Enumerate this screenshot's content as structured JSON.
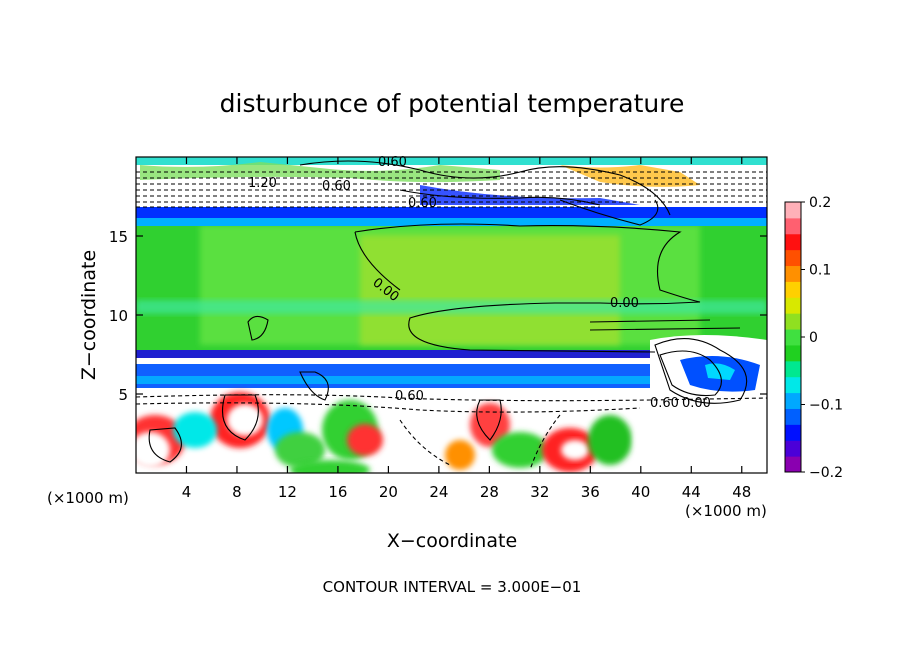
{
  "chart_data": {
    "type": "heatmap",
    "title": "disturbunce of potential temperature",
    "xlabel": "X−coordinate",
    "ylabel": "Z−coordinate",
    "x_unit_left": "(×1000 m)",
    "x_unit_right": "(×1000 m)",
    "xlim": [
      0,
      50
    ],
    "ylim": [
      0,
      20
    ],
    "x_ticks": [
      4,
      8,
      12,
      16,
      20,
      24,
      28,
      32,
      36,
      40,
      44,
      48
    ],
    "y_ticks": [
      5,
      10,
      15
    ],
    "x_tick_labels": [
      "4",
      "8",
      "12",
      "16",
      "20",
      "24",
      "28",
      "32",
      "36",
      "40",
      "44",
      "48"
    ],
    "y_tick_labels": [
      "5",
      "10",
      "15"
    ],
    "colorbar": {
      "range": [
        -0.2,
        0.2
      ],
      "ticks": [
        0.2,
        0.1,
        0,
        -0.1,
        -0.2
      ],
      "tick_labels": [
        "0.2",
        "0.1",
        "0",
        "−0.1",
        "−0.2"
      ],
      "colors": [
        "#8a00b0",
        "#4b00d8",
        "#0010ff",
        "#0060ff",
        "#00a8ff",
        "#00e8e8",
        "#00e890",
        "#20d020",
        "#40e040",
        "#90e020",
        "#d8e800",
        "#ffd000",
        "#ff9000",
        "#ff5000",
        "#ff1010",
        "#ff6070",
        "#ffb0b8"
      ]
    },
    "contour_interval_text": "CONTOUR INTERVAL = 3.000E−01",
    "contour_labels": [
      "0.60",
      "0.60",
      "0.60",
      "0.00",
      "0.00",
      "0.60",
      "1.20",
      "0.60",
      "0.00"
    ],
    "layers": [
      {
        "z_range": [
          17.5,
          20
        ],
        "value": "-0.2 to 0.2 (mixed)"
      },
      {
        "z_range": [
          16.0,
          17.0
        ],
        "value": -0.18
      },
      {
        "z_range": [
          8.0,
          16.0
        ],
        "value": 0.0
      },
      {
        "z_range": [
          7.0,
          7.5
        ],
        "value": -0.2
      },
      {
        "z_range": [
          5.5,
          7.0
        ],
        "value": -0.12
      },
      {
        "z_range": [
          0,
          5.5
        ],
        "value": "-0.2 to 0.2 (mixed)"
      }
    ]
  }
}
